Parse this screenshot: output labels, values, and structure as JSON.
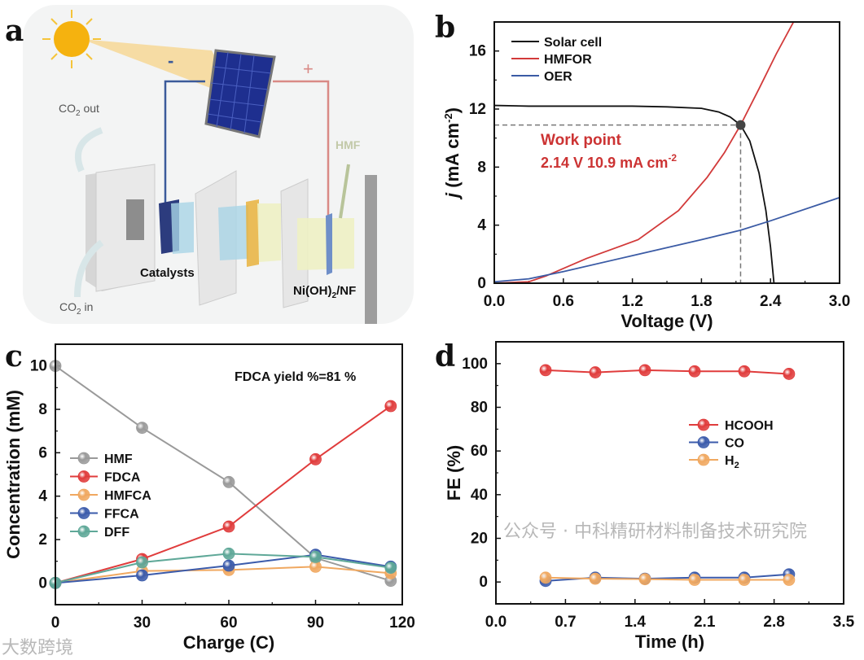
{
  "panel_labels": {
    "a": "a",
    "b": "b",
    "c": "c",
    "d": "d"
  },
  "schematic": {
    "minus": "-",
    "plus": "+",
    "co2_out": "CO",
    "co2_out_sub": "2",
    "co2_out_tail": " out",
    "co2_in": "CO",
    "co2_in_sub": "2",
    "co2_in_tail": " in",
    "hmf": "HMF",
    "catalysts": "Catalysts",
    "anode": "Ni(OH)",
    "anode_sub": "2",
    "anode_tail": "/NF",
    "colors": {
      "cathode_wire": "#3b5a9a",
      "anode_wire": "#d98a86",
      "panel": "#1e2f8f",
      "sun": "#f5b20f"
    }
  },
  "watermarks": {
    "left": "大数跨境",
    "right": "公众号 · 中科精研材料制备技术研究院"
  },
  "chart_data": [
    {
      "id": "b",
      "type": "line",
      "xlabel": "Voltage (V)",
      "ylabel_italic": "j",
      "ylabel_main": " (mA cm",
      "ylabel_sup": "-2",
      "ylabel_close": ")",
      "xlim": [
        0,
        3.0
      ],
      "ylim": [
        0,
        18
      ],
      "xticks": [
        0.0,
        0.6,
        1.2,
        1.8,
        2.4,
        3.0
      ],
      "xtick_labels": [
        "0.0",
        "0.6",
        "1.2",
        "1.8",
        "2.4",
        "3.0"
      ],
      "yticks": [
        0,
        4,
        8,
        12,
        16
      ],
      "ytick_labels": [
        "0",
        "4",
        "8",
        "12",
        "16"
      ],
      "legend_position": "top-left",
      "series": [
        {
          "name": "Solar cell",
          "color": "#111111",
          "markers": false,
          "x": [
            0,
            0.3,
            0.6,
            0.9,
            1.2,
            1.5,
            1.8,
            1.95,
            2.05,
            2.14,
            2.22,
            2.3,
            2.36,
            2.4,
            2.43
          ],
          "y": [
            12.25,
            12.2,
            12.2,
            12.2,
            12.2,
            12.15,
            12.05,
            11.8,
            11.45,
            10.9,
            9.8,
            7.6,
            5.0,
            2.5,
            0
          ]
        },
        {
          "name": "HMFOR",
          "color": "#d23a3a",
          "markers": false,
          "x": [
            0,
            0.3,
            0.45,
            0.8,
            1.25,
            1.6,
            1.85,
            2.0,
            2.14,
            2.3,
            2.45,
            2.6
          ],
          "y": [
            0,
            0.1,
            0.5,
            1.7,
            3.0,
            5.0,
            7.3,
            9.0,
            10.9,
            13.4,
            15.8,
            18
          ]
        },
        {
          "name": "OER",
          "color": "#3b5ba5",
          "markers": false,
          "x": [
            0,
            0.3,
            0.6,
            1.2,
            1.8,
            2.14,
            2.4,
            3.0
          ],
          "y": [
            0.1,
            0.3,
            0.8,
            1.9,
            3.0,
            3.65,
            4.3,
            5.9
          ]
        }
      ],
      "work_point": {
        "x": 2.14,
        "y": 10.9,
        "label": "Work point",
        "value_text": "2.14 V 10.9 mA cm",
        "value_sup": "-2",
        "color": "#cc3333"
      }
    },
    {
      "id": "c",
      "type": "line",
      "xlabel": "Charge (C)",
      "ylabel": "Concentration (mM)",
      "xlim": [
        0,
        120
      ],
      "ylim": [
        -1,
        11
      ],
      "xticks": [
        0,
        30,
        60,
        90,
        120
      ],
      "xtick_labels": [
        "0",
        "30",
        "60",
        "90",
        "120"
      ],
      "yticks": [
        0,
        2,
        4,
        6,
        8,
        10
      ],
      "ytick_labels": [
        "0",
        "2",
        "4",
        "6",
        "8",
        "10"
      ],
      "annotation": "FDCA yield %=81 %",
      "legend_position": "center-left",
      "series": [
        {
          "name": "HMF",
          "color": "#9a9a9a",
          "markers": true,
          "x": [
            0,
            30,
            60,
            90,
            116
          ],
          "y": [
            10,
            7.15,
            4.65,
            1.15,
            0.1
          ]
        },
        {
          "name": "FDCA",
          "color": "#e03c3c",
          "markers": true,
          "x": [
            0,
            30,
            60,
            90,
            116
          ],
          "y": [
            0,
            1.1,
            2.6,
            5.7,
            8.15
          ]
        },
        {
          "name": "HMFCA",
          "color": "#f0a860",
          "markers": true,
          "x": [
            0,
            30,
            60,
            90,
            116
          ],
          "y": [
            0,
            0.55,
            0.6,
            0.75,
            0.45
          ]
        },
        {
          "name": "FFCA",
          "color": "#3b5bab",
          "markers": true,
          "x": [
            0,
            30,
            60,
            90,
            116
          ],
          "y": [
            0,
            0.35,
            0.8,
            1.3,
            0.75
          ]
        },
        {
          "name": "DFF",
          "color": "#5fa898",
          "markers": true,
          "x": [
            0,
            30,
            60,
            90,
            116
          ],
          "y": [
            0,
            0.95,
            1.35,
            1.2,
            0.7
          ]
        }
      ]
    },
    {
      "id": "d",
      "type": "line",
      "xlabel": "Time (h)",
      "ylabel": "FE (%)",
      "xlim": [
        0,
        3.5
      ],
      "ylim": [
        -10,
        110
      ],
      "xticks": [
        0.0,
        0.7,
        1.4,
        2.1,
        2.8,
        3.5
      ],
      "xtick_labels": [
        "0.0",
        "0.7",
        "1.4",
        "2.1",
        "2.8",
        "3.5"
      ],
      "yticks": [
        0,
        20,
        40,
        60,
        80,
        100
      ],
      "ytick_labels": [
        "0",
        "20",
        "40",
        "60",
        "80",
        "100"
      ],
      "legend_position": "center-right",
      "series": [
        {
          "name": "HCOOH",
          "color": "#e03c3c",
          "markers": true,
          "x": [
            0.5,
            1.0,
            1.5,
            2.0,
            2.5,
            2.95
          ],
          "y": [
            97,
            96,
            97,
            96.5,
            96.5,
            95.3
          ]
        },
        {
          "name": "CO",
          "color": "#3b5bab",
          "markers": true,
          "x": [
            0.5,
            1.0,
            1.5,
            2.0,
            2.5,
            2.95
          ],
          "y": [
            0.5,
            2,
            1.5,
            2,
            2,
            3.5
          ]
        },
        {
          "name": "H",
          "name_sub": "2",
          "color": "#f0a860",
          "markers": true,
          "x": [
            0.5,
            1.0,
            1.5,
            2.0,
            2.5,
            2.95
          ],
          "y": [
            2,
            1.5,
            1.3,
            1,
            1,
            1
          ]
        }
      ]
    }
  ]
}
